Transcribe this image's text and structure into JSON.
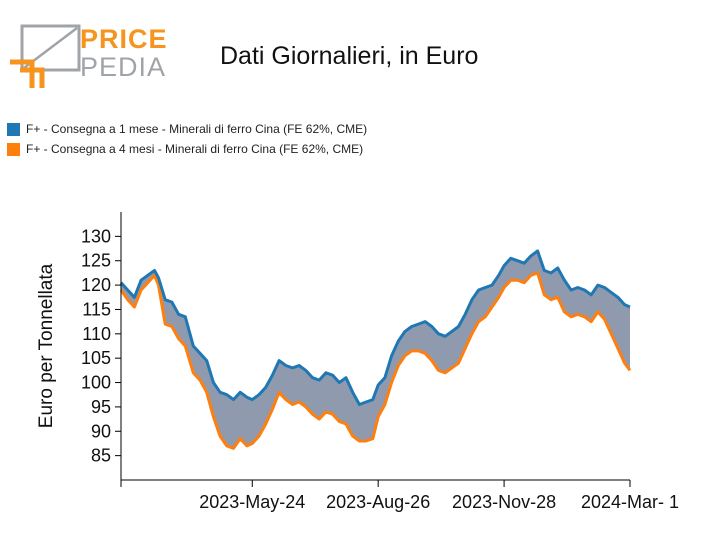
{
  "logo": {
    "word1": "PRICE",
    "word2": "PEDIA"
  },
  "chart_data": {
    "type": "area",
    "title": "Dati Giornalieri, in Euro",
    "ylabel": "Euro per Tonnellata",
    "xlabel": "",
    "ylim": [
      80,
      135
    ],
    "xlim": [
      "2023-02-15",
      "2024-03-01"
    ],
    "yticks": [
      85,
      90,
      95,
      100,
      105,
      110,
      115,
      120,
      125,
      130
    ],
    "xticks": [
      {
        "date": "2023-02-15",
        "label": ""
      },
      {
        "date": "2023-05-24",
        "label": "2023-May-24"
      },
      {
        "date": "2023-08-26",
        "label": "2023-Aug-26"
      },
      {
        "date": "2023-11-28",
        "label": "2023-Nov-28"
      },
      {
        "date": "2024-03-01",
        "label": "2024-Mar- 1"
      }
    ],
    "fill_between_color": "#8f9aae",
    "legend_position": "top-left",
    "series": [
      {
        "name": "F+ - Consegna a 1 mese - Minerali di ferro Cina (FE 62%, CME)",
        "color": "#1f77b4",
        "points": [
          [
            "2023-02-15",
            120.5
          ],
          [
            "2023-02-20",
            119.0
          ],
          [
            "2023-02-25",
            117.5
          ],
          [
            "2023-03-02",
            121.0
          ],
          [
            "2023-03-07",
            122.0
          ],
          [
            "2023-03-12",
            123.0
          ],
          [
            "2023-03-15",
            121.5
          ],
          [
            "2023-03-20",
            117.0
          ],
          [
            "2023-03-25",
            116.5
          ],
          [
            "2023-03-30",
            114.0
          ],
          [
            "2023-04-04",
            113.5
          ],
          [
            "2023-04-10",
            107.5
          ],
          [
            "2023-04-15",
            106.0
          ],
          [
            "2023-04-20",
            104.5
          ],
          [
            "2023-04-25",
            100.0
          ],
          [
            "2023-04-30",
            98.0
          ],
          [
            "2023-05-05",
            97.5
          ],
          [
            "2023-05-10",
            96.5
          ],
          [
            "2023-05-15",
            98.0
          ],
          [
            "2023-05-20",
            97.0
          ],
          [
            "2023-05-24",
            96.5
          ],
          [
            "2023-05-29",
            97.5
          ],
          [
            "2023-06-03",
            99.0
          ],
          [
            "2023-06-08",
            101.5
          ],
          [
            "2023-06-13",
            104.5
          ],
          [
            "2023-06-18",
            103.5
          ],
          [
            "2023-06-23",
            103.0
          ],
          [
            "2023-06-28",
            103.5
          ],
          [
            "2023-07-03",
            102.5
          ],
          [
            "2023-07-08",
            101.0
          ],
          [
            "2023-07-13",
            100.5
          ],
          [
            "2023-07-18",
            102.0
          ],
          [
            "2023-07-23",
            101.5
          ],
          [
            "2023-07-28",
            100.0
          ],
          [
            "2023-08-02",
            101.0
          ],
          [
            "2023-08-07",
            98.0
          ],
          [
            "2023-08-12",
            95.5
          ],
          [
            "2023-08-17",
            96.0
          ],
          [
            "2023-08-22",
            96.5
          ],
          [
            "2023-08-26",
            99.5
          ],
          [
            "2023-08-31",
            101.0
          ],
          [
            "2023-09-05",
            105.5
          ],
          [
            "2023-09-10",
            108.5
          ],
          [
            "2023-09-15",
            110.5
          ],
          [
            "2023-09-20",
            111.5
          ],
          [
            "2023-09-25",
            112.0
          ],
          [
            "2023-09-30",
            112.5
          ],
          [
            "2023-10-05",
            111.5
          ],
          [
            "2023-10-10",
            110.0
          ],
          [
            "2023-10-15",
            109.5
          ],
          [
            "2023-10-20",
            110.5
          ],
          [
            "2023-10-25",
            111.5
          ],
          [
            "2023-10-30",
            114.0
          ],
          [
            "2023-11-04",
            117.0
          ],
          [
            "2023-11-09",
            119.0
          ],
          [
            "2023-11-14",
            119.5
          ],
          [
            "2023-11-19",
            120.0
          ],
          [
            "2023-11-24",
            122.0
          ],
          [
            "2023-11-28",
            124.0
          ],
          [
            "2023-12-03",
            125.5
          ],
          [
            "2023-12-08",
            125.0
          ],
          [
            "2023-12-13",
            124.5
          ],
          [
            "2023-12-18",
            126.0
          ],
          [
            "2023-12-23",
            127.0
          ],
          [
            "2023-12-28",
            123.0
          ],
          [
            "2024-01-02",
            122.5
          ],
          [
            "2024-01-07",
            123.5
          ],
          [
            "2024-01-12",
            121.0
          ],
          [
            "2024-01-17",
            119.0
          ],
          [
            "2024-01-22",
            119.5
          ],
          [
            "2024-01-27",
            119.0
          ],
          [
            "2024-02-01",
            118.0
          ],
          [
            "2024-02-06",
            120.0
          ],
          [
            "2024-02-11",
            119.5
          ],
          [
            "2024-02-16",
            118.5
          ],
          [
            "2024-02-21",
            117.5
          ],
          [
            "2024-02-26",
            116.0
          ],
          [
            "2024-03-01",
            115.5
          ]
        ]
      },
      {
        "name": "F+ - Consegna a 4 mesi - Minerali di ferro Cina (FE 62%, CME)",
        "color": "#ff7f0e",
        "points": [
          [
            "2023-02-15",
            119.0
          ],
          [
            "2023-02-20",
            117.0
          ],
          [
            "2023-02-25",
            115.5
          ],
          [
            "2023-03-02",
            119.0
          ],
          [
            "2023-03-07",
            120.5
          ],
          [
            "2023-03-12",
            122.0
          ],
          [
            "2023-03-15",
            120.0
          ],
          [
            "2023-03-20",
            112.0
          ],
          [
            "2023-03-25",
            111.5
          ],
          [
            "2023-03-30",
            109.0
          ],
          [
            "2023-04-04",
            107.5
          ],
          [
            "2023-04-10",
            102.0
          ],
          [
            "2023-04-15",
            100.5
          ],
          [
            "2023-04-20",
            98.0
          ],
          [
            "2023-04-25",
            93.0
          ],
          [
            "2023-04-30",
            89.0
          ],
          [
            "2023-05-05",
            87.0
          ],
          [
            "2023-05-10",
            86.5
          ],
          [
            "2023-05-15",
            88.5
          ],
          [
            "2023-05-20",
            87.0
          ],
          [
            "2023-05-24",
            87.5
          ],
          [
            "2023-05-29",
            89.0
          ],
          [
            "2023-06-03",
            91.5
          ],
          [
            "2023-06-08",
            94.5
          ],
          [
            "2023-06-13",
            98.0
          ],
          [
            "2023-06-18",
            96.5
          ],
          [
            "2023-06-23",
            95.5
          ],
          [
            "2023-06-28",
            96.0
          ],
          [
            "2023-07-03",
            95.0
          ],
          [
            "2023-07-08",
            93.5
          ],
          [
            "2023-07-13",
            92.5
          ],
          [
            "2023-07-18",
            94.0
          ],
          [
            "2023-07-23",
            93.5
          ],
          [
            "2023-07-28",
            92.0
          ],
          [
            "2023-08-02",
            91.5
          ],
          [
            "2023-08-07",
            89.0
          ],
          [
            "2023-08-12",
            88.0
          ],
          [
            "2023-08-17",
            88.0
          ],
          [
            "2023-08-22",
            88.5
          ],
          [
            "2023-08-26",
            93.0
          ],
          [
            "2023-08-31",
            95.5
          ],
          [
            "2023-09-05",
            100.0
          ],
          [
            "2023-09-10",
            103.5
          ],
          [
            "2023-09-15",
            105.5
          ],
          [
            "2023-09-20",
            106.5
          ],
          [
            "2023-09-25",
            106.5
          ],
          [
            "2023-09-30",
            106.0
          ],
          [
            "2023-10-05",
            104.5
          ],
          [
            "2023-10-10",
            102.5
          ],
          [
            "2023-10-15",
            102.0
          ],
          [
            "2023-10-20",
            103.0
          ],
          [
            "2023-10-25",
            104.0
          ],
          [
            "2023-10-30",
            107.0
          ],
          [
            "2023-11-04",
            110.0
          ],
          [
            "2023-11-09",
            112.5
          ],
          [
            "2023-11-14",
            113.5
          ],
          [
            "2023-11-19",
            115.5
          ],
          [
            "2023-11-24",
            117.5
          ],
          [
            "2023-11-28",
            119.5
          ],
          [
            "2023-12-03",
            121.0
          ],
          [
            "2023-12-08",
            121.0
          ],
          [
            "2023-12-13",
            120.5
          ],
          [
            "2023-12-18",
            122.0
          ],
          [
            "2023-12-23",
            122.5
          ],
          [
            "2023-12-28",
            118.0
          ],
          [
            "2024-01-02",
            117.0
          ],
          [
            "2024-01-07",
            117.5
          ],
          [
            "2024-01-12",
            114.5
          ],
          [
            "2024-01-17",
            113.5
          ],
          [
            "2024-01-22",
            114.0
          ],
          [
            "2024-01-27",
            113.5
          ],
          [
            "2024-02-01",
            112.5
          ],
          [
            "2024-02-06",
            114.5
          ],
          [
            "2024-02-11",
            113.0
          ],
          [
            "2024-02-16",
            110.0
          ],
          [
            "2024-02-21",
            107.0
          ],
          [
            "2024-02-26",
            104.0
          ],
          [
            "2024-03-01",
            102.5
          ]
        ]
      }
    ]
  }
}
